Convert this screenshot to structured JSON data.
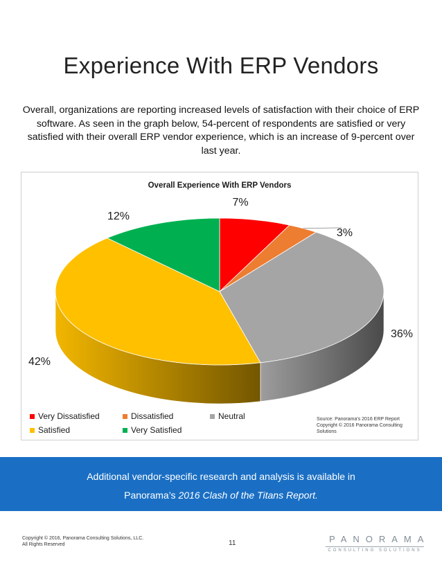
{
  "page": {
    "title": "Experience With ERP Vendors",
    "intro": "Overall, organizations are reporting increased levels of satisfaction with their choice of ERP software. As seen in the graph below, 54-percent of respondents are satisfied or very satisfied with their overall ERP vendor experience, which is an increase of 9-percent over last year.",
    "banner_line1": "Additional vendor-specific research and analysis is available in",
    "banner_line2_prefix": "Panorama’s ",
    "banner_line2_italic": "2016 Clash of the Titans Report.",
    "copyright_line1": "Copyright © 2016, Panorama Consulting Solutions, LLC.",
    "copyright_line2": "All Rights Reserved",
    "page_number": "11",
    "logo_brand": "PANORAMA",
    "logo_sub": "CONSULTING SOLUTIONS",
    "source_line1": "Source: Panorama's 2016 ERP Report",
    "source_line2": "Copyright © 2016 Panorama Consulting",
    "source_line3": "Solutions"
  },
  "chart_data": {
    "type": "pie",
    "title": "Overall Experience With ERP Vendors",
    "categories": [
      "Very Dissatisfied",
      "Dissatisfied",
      "Neutral",
      "Satisfied",
      "Very Satisfied"
    ],
    "values": [
      7,
      3,
      36,
      42,
      12
    ],
    "data_labels": [
      "7%",
      "3%",
      "36%",
      "42%",
      "12%"
    ],
    "colors": [
      "#ff0000",
      "#ed7d31",
      "#a5a5a5",
      "#ffc000",
      "#00b050"
    ],
    "legend_placement": "bottom-left",
    "style": "3d-pie"
  }
}
